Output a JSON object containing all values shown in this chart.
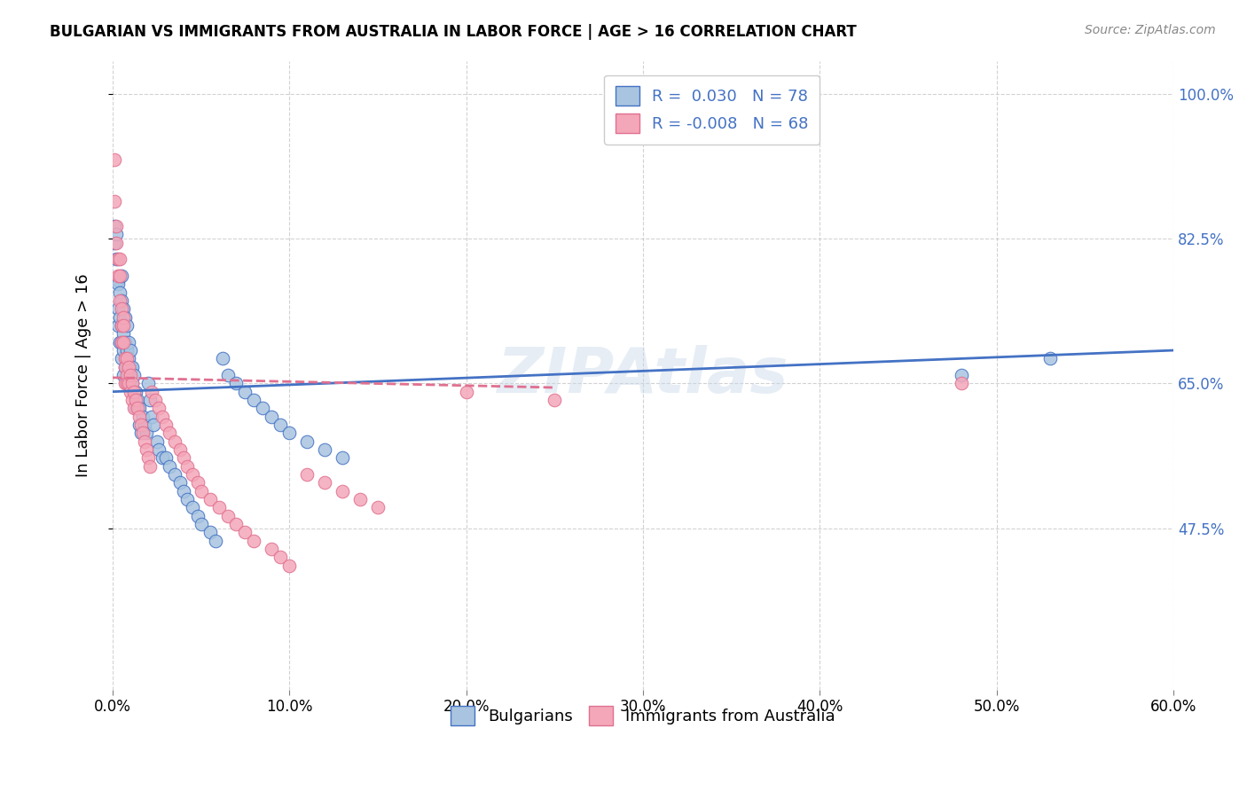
{
  "title": "BULGARIAN VS IMMIGRANTS FROM AUSTRALIA IN LABOR FORCE | AGE > 16 CORRELATION CHART",
  "source": "Source: ZipAtlas.com",
  "ylabel": "In Labor Force | Age > 16",
  "ytick_labels": [
    "100.0%",
    "82.5%",
    "65.0%",
    "47.5%"
  ],
  "ytick_values": [
    1.0,
    0.825,
    0.65,
    0.475
  ],
  "legend_label1": "Bulgarians",
  "legend_label2": "Immigrants from Australia",
  "r1": 0.03,
  "n1": 78,
  "r2": -0.008,
  "n2": 68,
  "color_blue": "#a8c4e0",
  "color_pink": "#f4a7b9",
  "line_blue": "#4472c4",
  "line_pink": "#e07090",
  "watermark": "ZIPAtlas",
  "blue_scatter_x": [
    0.001,
    0.001,
    0.002,
    0.002,
    0.003,
    0.003,
    0.003,
    0.003,
    0.004,
    0.004,
    0.004,
    0.005,
    0.005,
    0.005,
    0.005,
    0.005,
    0.006,
    0.006,
    0.006,
    0.006,
    0.007,
    0.007,
    0.007,
    0.008,
    0.008,
    0.008,
    0.008,
    0.009,
    0.009,
    0.009,
    0.01,
    0.01,
    0.01,
    0.011,
    0.011,
    0.012,
    0.012,
    0.013,
    0.013,
    0.014,
    0.015,
    0.015,
    0.016,
    0.017,
    0.018,
    0.019,
    0.02,
    0.021,
    0.022,
    0.023,
    0.025,
    0.026,
    0.028,
    0.03,
    0.032,
    0.035,
    0.038,
    0.04,
    0.042,
    0.045,
    0.048,
    0.05,
    0.055,
    0.058,
    0.062,
    0.065,
    0.07,
    0.075,
    0.08,
    0.085,
    0.09,
    0.095,
    0.1,
    0.11,
    0.12,
    0.13,
    0.48,
    0.53
  ],
  "blue_scatter_y": [
    0.84,
    0.82,
    0.83,
    0.8,
    0.775,
    0.77,
    0.74,
    0.72,
    0.76,
    0.73,
    0.7,
    0.78,
    0.75,
    0.72,
    0.7,
    0.68,
    0.74,
    0.71,
    0.69,
    0.66,
    0.73,
    0.7,
    0.67,
    0.72,
    0.69,
    0.67,
    0.65,
    0.7,
    0.68,
    0.66,
    0.69,
    0.67,
    0.65,
    0.67,
    0.65,
    0.66,
    0.64,
    0.64,
    0.62,
    0.63,
    0.62,
    0.6,
    0.59,
    0.61,
    0.6,
    0.59,
    0.65,
    0.63,
    0.61,
    0.6,
    0.58,
    0.57,
    0.56,
    0.56,
    0.55,
    0.54,
    0.53,
    0.52,
    0.51,
    0.5,
    0.49,
    0.48,
    0.47,
    0.46,
    0.68,
    0.66,
    0.65,
    0.64,
    0.63,
    0.62,
    0.61,
    0.6,
    0.59,
    0.58,
    0.57,
    0.56,
    0.66,
    0.68
  ],
  "pink_scatter_x": [
    0.001,
    0.001,
    0.002,
    0.002,
    0.003,
    0.003,
    0.004,
    0.004,
    0.004,
    0.005,
    0.005,
    0.005,
    0.006,
    0.006,
    0.006,
    0.007,
    0.007,
    0.007,
    0.008,
    0.008,
    0.008,
    0.009,
    0.009,
    0.01,
    0.01,
    0.011,
    0.011,
    0.012,
    0.012,
    0.013,
    0.014,
    0.015,
    0.016,
    0.017,
    0.018,
    0.019,
    0.02,
    0.021,
    0.022,
    0.024,
    0.026,
    0.028,
    0.03,
    0.032,
    0.035,
    0.038,
    0.04,
    0.042,
    0.045,
    0.048,
    0.05,
    0.055,
    0.06,
    0.065,
    0.07,
    0.075,
    0.08,
    0.09,
    0.095,
    0.1,
    0.11,
    0.12,
    0.13,
    0.14,
    0.15,
    0.2,
    0.25,
    0.48
  ],
  "pink_scatter_y": [
    0.92,
    0.87,
    0.84,
    0.82,
    0.8,
    0.78,
    0.8,
    0.78,
    0.75,
    0.74,
    0.72,
    0.7,
    0.73,
    0.72,
    0.7,
    0.68,
    0.67,
    0.65,
    0.68,
    0.66,
    0.65,
    0.67,
    0.65,
    0.66,
    0.64,
    0.65,
    0.63,
    0.64,
    0.62,
    0.63,
    0.62,
    0.61,
    0.6,
    0.59,
    0.58,
    0.57,
    0.56,
    0.55,
    0.64,
    0.63,
    0.62,
    0.61,
    0.6,
    0.59,
    0.58,
    0.57,
    0.56,
    0.55,
    0.54,
    0.53,
    0.52,
    0.51,
    0.5,
    0.49,
    0.48,
    0.47,
    0.46,
    0.45,
    0.44,
    0.43,
    0.54,
    0.53,
    0.52,
    0.51,
    0.5,
    0.64,
    0.63,
    0.65
  ],
  "xlim": [
    0.0,
    0.6
  ],
  "ylim": [
    0.28,
    1.04
  ],
  "blue_trendline_x": [
    0.0,
    0.6
  ],
  "blue_trendline_y": [
    0.64,
    0.69
  ],
  "pink_trendline_x": [
    0.0,
    0.25
  ],
  "pink_trendline_y": [
    0.657,
    0.645
  ]
}
